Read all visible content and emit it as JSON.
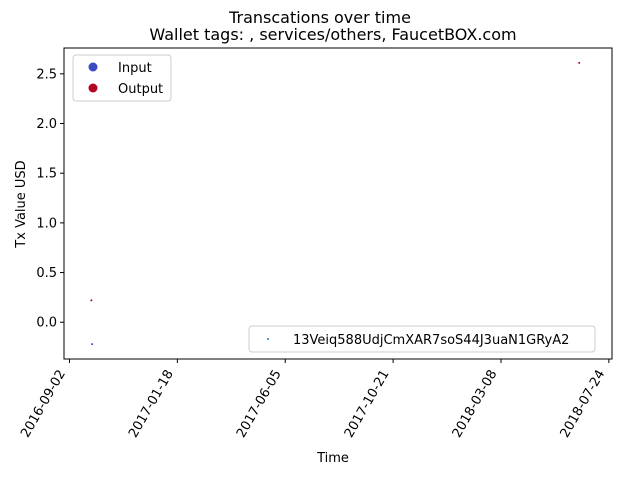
{
  "chart_data": {
    "type": "scatter",
    "title": "Transcations over time",
    "subtitle": "Wallet tags: , services/others, FaucetBOX.com",
    "xlabel": "Time",
    "ylabel": "Tx Value USD",
    "x_type": "date",
    "xlim": [
      "2016-08-26",
      "2018-07-28"
    ],
    "ylim": [
      -0.37,
      2.76
    ],
    "x_ticks": [
      "2016-09-02",
      "2017-01-18",
      "2017-06-05",
      "2017-10-21",
      "2018-03-08",
      "2018-07-24"
    ],
    "y_ticks": [
      0.0,
      0.5,
      1.0,
      1.5,
      2.0,
      2.5
    ],
    "y_tick_labels": [
      "0.0",
      "0.5",
      "1.0",
      "1.5",
      "2.0",
      "2.5"
    ],
    "grid": false,
    "legend_position": "top-left",
    "legend_entries": [
      {
        "label": "Input",
        "color": "#3b4cc0"
      },
      {
        "label": "Output",
        "color": "#b40426"
      }
    ],
    "wallet_legend": {
      "label": "13Veiq588UdjCmXAR7soS44J3uaN1GRyA2",
      "color": "#1f77b4",
      "position": "lower-right"
    },
    "points": [
      {
        "x": "2016-09-30",
        "y": 0.22,
        "type": "Output",
        "color": "#b40426"
      },
      {
        "x": "2016-10-01",
        "y": -0.22,
        "type": "Input",
        "color": "#3b4cc0"
      },
      {
        "x": "2018-06-16",
        "y": 2.61,
        "type": "Output",
        "color": "#b40426"
      }
    ]
  }
}
